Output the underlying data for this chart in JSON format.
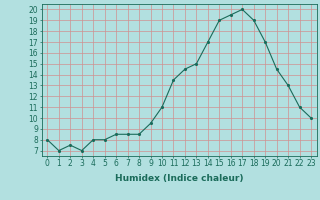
{
  "x": [
    0,
    1,
    2,
    3,
    4,
    5,
    6,
    7,
    8,
    9,
    10,
    11,
    12,
    13,
    14,
    15,
    16,
    17,
    18,
    19,
    20,
    21,
    22,
    23
  ],
  "y": [
    8,
    7,
    7.5,
    7,
    8,
    8,
    8.5,
    8.5,
    8.5,
    9.5,
    11,
    13.5,
    14.5,
    15,
    17,
    19,
    19.5,
    20,
    19,
    17,
    14.5,
    13,
    11,
    10
  ],
  "xlabel": "Humidex (Indice chaleur)",
  "ylim": [
    6.5,
    20.5
  ],
  "xlim": [
    -0.5,
    23.5
  ],
  "yticks": [
    7,
    8,
    9,
    10,
    11,
    12,
    13,
    14,
    15,
    16,
    17,
    18,
    19,
    20
  ],
  "xticks": [
    0,
    1,
    2,
    3,
    4,
    5,
    6,
    7,
    8,
    9,
    10,
    11,
    12,
    13,
    14,
    15,
    16,
    17,
    18,
    19,
    20,
    21,
    22,
    23
  ],
  "line_color": "#1a6b5a",
  "marker_color": "#1a6b5a",
  "bg_color": "#b2e0e0",
  "grid_color": "#d09090",
  "tick_label_fontsize": 5.5,
  "xlabel_fontsize": 6.5
}
